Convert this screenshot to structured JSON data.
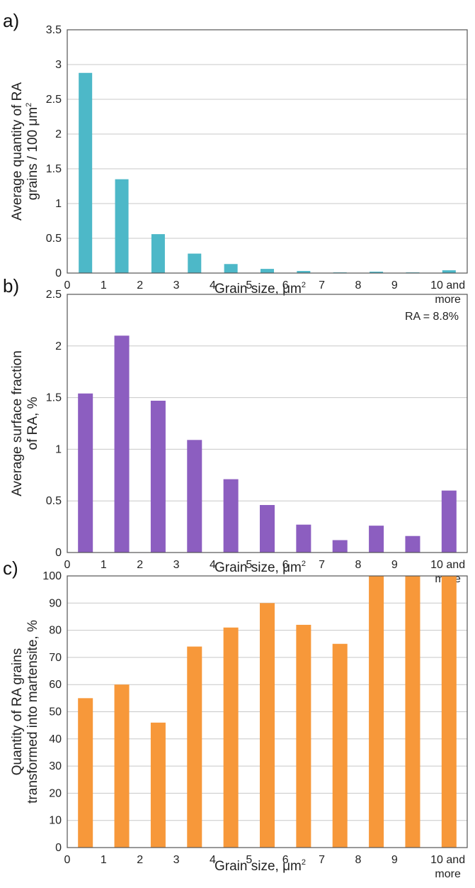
{
  "chart_data": [
    {
      "type": "bar",
      "panel_label": "a)",
      "categories": [
        0.5,
        1.5,
        2.5,
        3.5,
        4.5,
        5.5,
        6.5,
        7.5,
        8.5,
        9.5,
        10.5
      ],
      "values": [
        2.88,
        1.35,
        0.56,
        0.28,
        0.13,
        0.06,
        0.03,
        0.01,
        0.02,
        0.01,
        0.04
      ],
      "x_ticks": [
        "0",
        "1",
        "2",
        "3",
        "4",
        "5",
        "6",
        "7",
        "8",
        "9",
        "10 and"
      ],
      "x_tick_extra": "more",
      "y_ticks": [
        "0",
        "0.5",
        "1",
        "1.5",
        "2",
        "2.5",
        "3",
        "3.5"
      ],
      "ylim": [
        0,
        3.5
      ],
      "xlim": [
        0,
        11
      ],
      "ylabel_line1": "Average quantity of RA",
      "ylabel_line2": "grains / 100 μm",
      "ylabel_sup": "2",
      "xlabel": "Grain size, μm",
      "xlabel_sup": "2",
      "annotation": "",
      "color": "#4db8c8",
      "grid": true
    },
    {
      "type": "bar",
      "panel_label": "b)",
      "categories": [
        0.5,
        1.5,
        2.5,
        3.5,
        4.5,
        5.5,
        6.5,
        7.5,
        8.5,
        9.5,
        10.5
      ],
      "values": [
        1.54,
        2.1,
        1.47,
        1.09,
        0.71,
        0.46,
        0.27,
        0.12,
        0.26,
        0.16,
        0.6
      ],
      "x_ticks": [
        "0",
        "1",
        "2",
        "3",
        "4",
        "5",
        "6",
        "7",
        "8",
        "9",
        "10 and"
      ],
      "x_tick_extra": "more",
      "y_ticks": [
        "0",
        "0.5",
        "1",
        "1.5",
        "2",
        "2.5"
      ],
      "ylim": [
        0,
        2.5
      ],
      "xlim": [
        0,
        11
      ],
      "ylabel_line1": "Average surface fraction",
      "ylabel_line2": "of RA, %",
      "ylabel_sup": "",
      "xlabel": "Grain size, μm",
      "xlabel_sup": "2",
      "annotation": "RA = 8.8%",
      "color": "#8c5ec0",
      "grid": true
    },
    {
      "type": "bar",
      "panel_label": "c)",
      "categories": [
        0.5,
        1.5,
        2.5,
        3.5,
        4.5,
        5.5,
        6.5,
        7.5,
        8.5,
        9.5,
        10.5
      ],
      "values": [
        55,
        60,
        46,
        74,
        81,
        90,
        82,
        75,
        100,
        100,
        100
      ],
      "x_ticks": [
        "0",
        "1",
        "2",
        "3",
        "4",
        "5",
        "6",
        "7",
        "8",
        "9",
        "10 and"
      ],
      "x_tick_extra": "more",
      "y_ticks": [
        "0",
        "10",
        "20",
        "30",
        "40",
        "50",
        "60",
        "70",
        "80",
        "90",
        "100"
      ],
      "ylim": [
        0,
        100
      ],
      "xlim": [
        0,
        11
      ],
      "ylabel_line1": "Quantity of RA grains",
      "ylabel_line2": "transformed into martensite, %",
      "ylabel_sup": "",
      "xlabel": "Grain size, μm",
      "xlabel_sup": "2",
      "annotation": "",
      "color": "#f7983a",
      "grid": true
    }
  ]
}
